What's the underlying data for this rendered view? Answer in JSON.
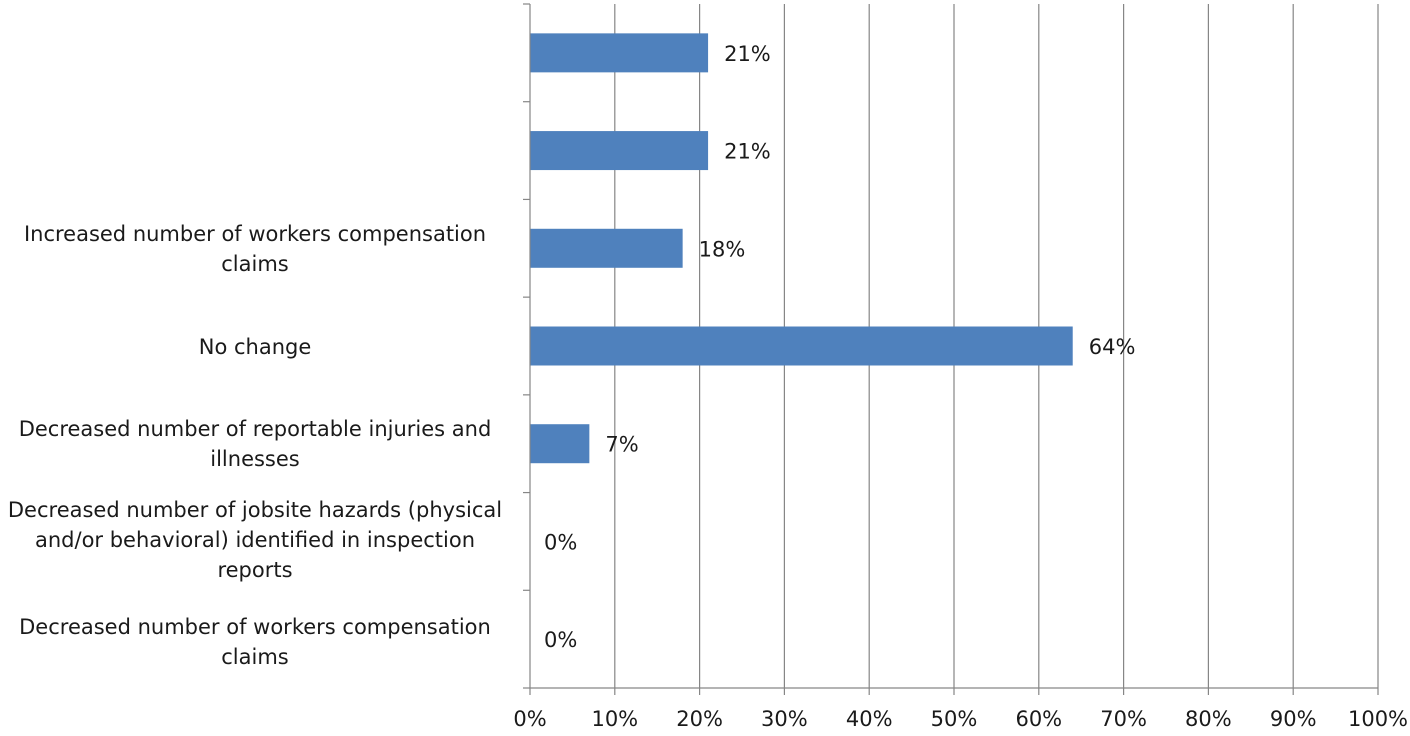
{
  "chart_data": {
    "type": "bar",
    "orientation": "horizontal",
    "categories": [
      "",
      "",
      "Increased number of workers compensation claims",
      "No change",
      "Decreased number of reportable injuries and illnesses",
      "Decreased number of jobsite hazards (physical and/or behavioral) identified in inspection reports",
      "Decreased number of workers compensation claims"
    ],
    "values": [
      21,
      21,
      18,
      64,
      7,
      0,
      0
    ],
    "data_labels": [
      "21%",
      "21%",
      "18%",
      "64%",
      "7%",
      "0%",
      "0%"
    ],
    "x_ticks": [
      "0%",
      "10%",
      "20%",
      "30%",
      "40%",
      "50%",
      "60%",
      "70%",
      "80%",
      "90%",
      "100%"
    ],
    "xlim": [
      0,
      100
    ],
    "grid": true,
    "bar_color": "#4f81bd",
    "grid_color": "#868686"
  }
}
